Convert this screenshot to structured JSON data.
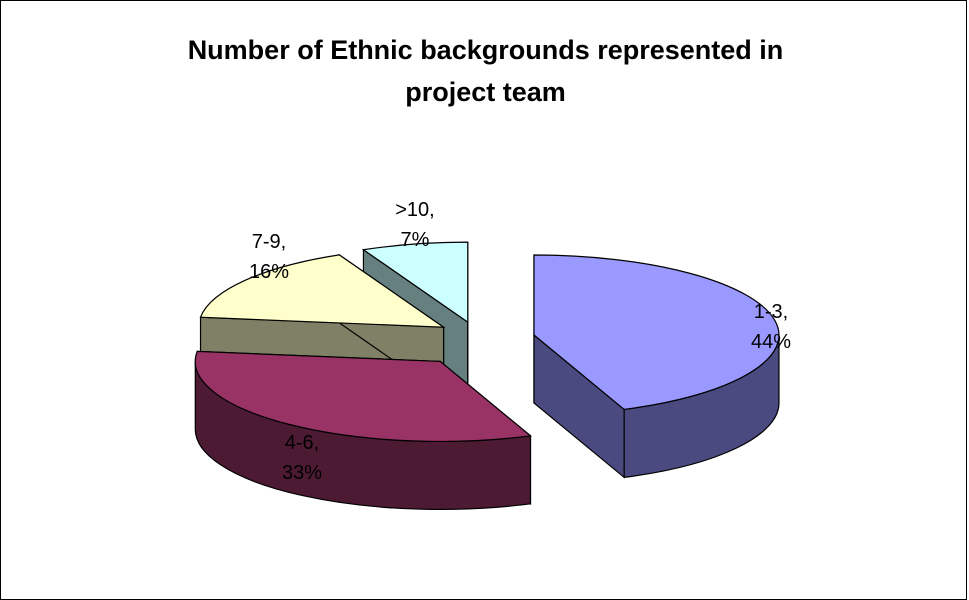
{
  "chart_data": {
    "type": "pie",
    "title": "Number of Ethnic backgrounds represented in project team",
    "title_lines": [
      "Number of Ethnic backgrounds represented in",
      "project team"
    ],
    "style": "3d-exploded",
    "slices": [
      {
        "label": "1-3",
        "value": 44,
        "value_label": "44%",
        "color": "#9999ff",
        "side_color": "#4a4a80"
      },
      {
        "label": "4-6",
        "value": 33,
        "value_label": "33%",
        "color": "#993366",
        "side_color": "#4d1a33"
      },
      {
        "label": "7-9",
        "value": 16,
        "value_label": "16%",
        "color": "#ffffcc",
        "side_color": "#808066"
      },
      {
        "label": ">10",
        "value": 7,
        "value_label": "7%",
        "color": "#ccffff",
        "side_color": "#668080"
      }
    ],
    "legend": "none"
  }
}
